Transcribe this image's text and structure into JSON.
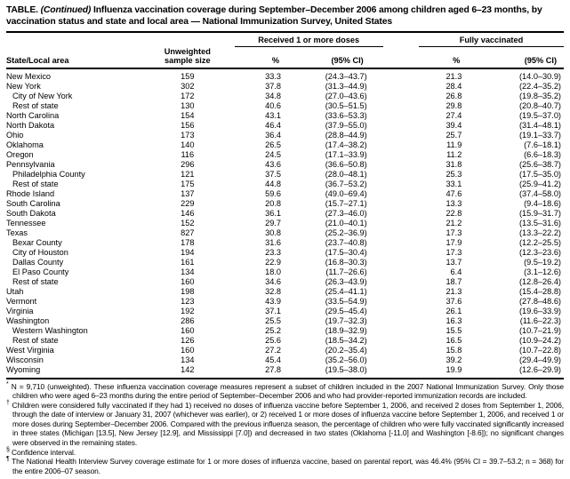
{
  "title": {
    "label": "TABLE.",
    "continued": "(Continued)",
    "text": "Influenza vaccination coverage during September–December 2006 among children aged 6–23 months, by vaccination status and state and local area — National Immunization Survey, United States"
  },
  "table": {
    "headers": {
      "area": "State/Local area",
      "n_line1": "Unweighted",
      "n_line2": "sample size",
      "group1": "Received 1 or more doses",
      "group2": "Fully vaccinated",
      "pct": "%",
      "ci": "(95% CI)"
    },
    "rows": [
      {
        "area": "New Mexico",
        "indent": false,
        "n": "159",
        "dose1_pct": "33.3",
        "dose1_ci": "(24.3–43.7)",
        "full_pct": "21.3",
        "full_ci": "(14.0–30.9)"
      },
      {
        "area": "New York",
        "indent": false,
        "n": "302",
        "dose1_pct": "37.8",
        "dose1_ci": "(31.3–44.9)",
        "full_pct": "28.4",
        "full_ci": "(22.4–35.2)"
      },
      {
        "area": "City of New York",
        "indent": true,
        "n": "172",
        "dose1_pct": "34.8",
        "dose1_ci": "(27.0–43.6)",
        "full_pct": "26.8",
        "full_ci": "(19.8–35.2)"
      },
      {
        "area": "Rest of state",
        "indent": true,
        "n": "130",
        "dose1_pct": "40.6",
        "dose1_ci": "(30.5–51.5)",
        "full_pct": "29.8",
        "full_ci": "(20.8–40.7)"
      },
      {
        "area": "North Carolina",
        "indent": false,
        "n": "154",
        "dose1_pct": "43.1",
        "dose1_ci": "(33.6–53.3)",
        "full_pct": "27.4",
        "full_ci": "(19.5–37.0)"
      },
      {
        "area": "North Dakota",
        "indent": false,
        "n": "156",
        "dose1_pct": "46.4",
        "dose1_ci": "(37.9–55.0)",
        "full_pct": "39.4",
        "full_ci": "(31.4–48.1)"
      },
      {
        "area": "Ohio",
        "indent": false,
        "n": "173",
        "dose1_pct": "36.4",
        "dose1_ci": "(28.8–44.9)",
        "full_pct": "25.7",
        "full_ci": "(19.1–33.7)"
      },
      {
        "area": "Oklahoma",
        "indent": false,
        "n": "140",
        "dose1_pct": "26.5",
        "dose1_ci": "(17.4–38.2)",
        "full_pct": "11.9",
        "full_ci": "(7.6–18.1)"
      },
      {
        "area": "Oregon",
        "indent": false,
        "n": "116",
        "dose1_pct": "24.5",
        "dose1_ci": "(17.1–33.9)",
        "full_pct": "11.2",
        "full_ci": "(6.6–18.3)"
      },
      {
        "area": "Pennsylvania",
        "indent": false,
        "n": "296",
        "dose1_pct": "43.6",
        "dose1_ci": "(36.6–50.8)",
        "full_pct": "31.8",
        "full_ci": "(25.6–38.7)"
      },
      {
        "area": "Philadelphia County",
        "indent": true,
        "n": "121",
        "dose1_pct": "37.5",
        "dose1_ci": "(28.0–48.1)",
        "full_pct": "25.3",
        "full_ci": "(17.5–35.0)"
      },
      {
        "area": "Rest of state",
        "indent": true,
        "n": "175",
        "dose1_pct": "44.8",
        "dose1_ci": "(36.7–53.2)",
        "full_pct": "33.1",
        "full_ci": "(25.9–41.2)"
      },
      {
        "area": "Rhode Island",
        "indent": false,
        "n": "137",
        "dose1_pct": "59.6",
        "dose1_ci": "(49.0–69.4)",
        "full_pct": "47.6",
        "full_ci": "(37.4–58.0)"
      },
      {
        "area": "South Carolina",
        "indent": false,
        "n": "229",
        "dose1_pct": "20.8",
        "dose1_ci": "(15.7–27.1)",
        "full_pct": "13.3",
        "full_ci": "(9.4–18.6)"
      },
      {
        "area": "South Dakota",
        "indent": false,
        "n": "146",
        "dose1_pct": "36.1",
        "dose1_ci": "(27.3–46.0)",
        "full_pct": "22.8",
        "full_ci": "(15.9–31.7)"
      },
      {
        "area": "Tennessee",
        "indent": false,
        "n": "152",
        "dose1_pct": "29.7",
        "dose1_ci": "(21.0–40.1)",
        "full_pct": "21.2",
        "full_ci": "(13.5–31.6)"
      },
      {
        "area": "Texas",
        "indent": false,
        "n": "827",
        "dose1_pct": "30.8",
        "dose1_ci": "(25.2–36.9)",
        "full_pct": "17.3",
        "full_ci": "(13.3–22.2)"
      },
      {
        "area": "Bexar County",
        "indent": true,
        "n": "178",
        "dose1_pct": "31.6",
        "dose1_ci": "(23.7–40.8)",
        "full_pct": "17.9",
        "full_ci": "(12.2–25.5)"
      },
      {
        "area": "City of Houston",
        "indent": true,
        "n": "194",
        "dose1_pct": "23.3",
        "dose1_ci": "(17.5–30.4)",
        "full_pct": "17.3",
        "full_ci": "(12.3–23.6)"
      },
      {
        "area": "Dallas County",
        "indent": true,
        "n": "161",
        "dose1_pct": "22.9",
        "dose1_ci": "(16.8–30.3)",
        "full_pct": "13.7",
        "full_ci": "(9.5–19.2)"
      },
      {
        "area": "El Paso County",
        "indent": true,
        "n": "134",
        "dose1_pct": "18.0",
        "dose1_ci": "(11.7–26.6)",
        "full_pct": "6.4",
        "full_ci": "(3.1–12.6)"
      },
      {
        "area": "Rest of state",
        "indent": true,
        "n": "160",
        "dose1_pct": "34.6",
        "dose1_ci": "(26.3–43.9)",
        "full_pct": "18.7",
        "full_ci": "(12.8–26.4)"
      },
      {
        "area": "Utah",
        "indent": false,
        "n": "198",
        "dose1_pct": "32.8",
        "dose1_ci": "(25.4–41.1)",
        "full_pct": "21.3",
        "full_ci": "(15.4–28.8)"
      },
      {
        "area": "Vermont",
        "indent": false,
        "n": "123",
        "dose1_pct": "43.9",
        "dose1_ci": "(33.5–54.9)",
        "full_pct": "37.6",
        "full_ci": "(27.8–48.6)"
      },
      {
        "area": "Virginia",
        "indent": false,
        "n": "192",
        "dose1_pct": "37.1",
        "dose1_ci": "(29.5–45.4)",
        "full_pct": "26.1",
        "full_ci": "(19.6–33.9)"
      },
      {
        "area": "Washington",
        "indent": false,
        "n": "286",
        "dose1_pct": "25.5",
        "dose1_ci": "(19.7–32.3)",
        "full_pct": "16.3",
        "full_ci": "(11.6–22.3)"
      },
      {
        "area": "Western Washington",
        "indent": true,
        "n": "160",
        "dose1_pct": "25.2",
        "dose1_ci": "(18.9–32.9)",
        "full_pct": "15.5",
        "full_ci": "(10.7–21.9)"
      },
      {
        "area": "Rest of state",
        "indent": true,
        "n": "126",
        "dose1_pct": "25.6",
        "dose1_ci": "(18.5–34.2)",
        "full_pct": "16.5",
        "full_ci": "(10.9–24.2)"
      },
      {
        "area": "West Virginia",
        "indent": false,
        "n": "160",
        "dose1_pct": "27.2",
        "dose1_ci": "(20.2–35.4)",
        "full_pct": "15.8",
        "full_ci": "(10.7–22.8)"
      },
      {
        "area": "Wisconsin",
        "indent": false,
        "n": "134",
        "dose1_pct": "45.4",
        "dose1_ci": "(35.2–56.0)",
        "full_pct": "39.2",
        "full_ci": "(29.4–49.9)"
      },
      {
        "area": "Wyoming",
        "indent": false,
        "n": "142",
        "dose1_pct": "27.8",
        "dose1_ci": "(19.5–38.0)",
        "full_pct": "19.9",
        "full_ci": "(12.6–29.9)"
      }
    ]
  },
  "footnotes": [
    {
      "marker": "*",
      "text": "N = 9,710 (unweighted). These influenza vaccination coverage measures represent a subset of children included in the 2007 National Immunization Survey. Only those children who were aged 6–23 months during the entire period of September–December 2006 and who had provider-reported immunization records are included."
    },
    {
      "marker": "†",
      "text": "Children were considered fully vaccinated if they had 1) received no doses of influenza vaccine before September 1, 2006, and received 2 doses from September 1, 2006, through the date of interview or January 31, 2007 (whichever was earlier), or 2) received 1 or more doses of influenza vaccine before September 1, 2006, and received 1 or more doses during September–December 2006. Compared with the previous influenza season, the percentage of children who were fully vaccinated significantly increased in three states (Michigan [13.5], New Jersey [12.9], and Mississippi [7.0]) and decreased in two states (Oklahoma [-11.0] and Washington [-8.6]); no significant changes were observed in the remaining states."
    },
    {
      "marker": "§",
      "text": "Confidence interval."
    },
    {
      "marker": "¶",
      "text": "The National Health Interview Survey coverage estimate for 1 or more doses of influenza vaccine, based on parental report, was 46.4% (95% CI = 39.7–53.2; n = 368) for the entire 2006–07 season."
    }
  ]
}
